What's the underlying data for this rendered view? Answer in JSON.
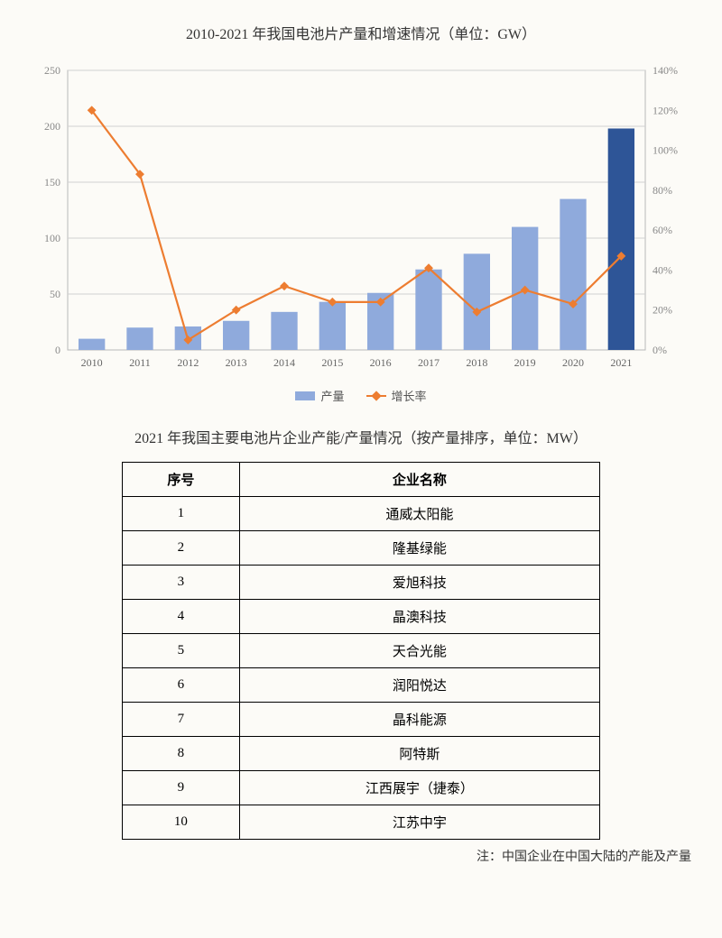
{
  "chart": {
    "title": "2010-2021 年我国电池片产量和增速情况（单位：GW）",
    "type": "bar_line_dual_axis",
    "categories": [
      "2010",
      "2011",
      "2012",
      "2013",
      "2014",
      "2015",
      "2016",
      "2017",
      "2018",
      "2019",
      "2020",
      "2021"
    ],
    "bar_series": {
      "label": "产量",
      "values": [
        10,
        20,
        21,
        26,
        34,
        43,
        51,
        72,
        86,
        110,
        135,
        198
      ],
      "colors": [
        "#8faadc",
        "#8faadc",
        "#8faadc",
        "#8faadc",
        "#8faadc",
        "#8faadc",
        "#8faadc",
        "#8faadc",
        "#8faadc",
        "#8faadc",
        "#8faadc",
        "#2e5597"
      ]
    },
    "line_series": {
      "label": "增长率",
      "values": [
        120,
        88,
        5,
        20,
        32,
        24,
        24,
        41,
        19,
        30,
        23,
        47
      ],
      "color": "#ed7d31",
      "stroke_width": 2.2,
      "marker": "diamond",
      "marker_size": 7
    },
    "left_axis": {
      "min": 0,
      "max": 250,
      "step": 50,
      "label_fontsize": 12,
      "color": "#888"
    },
    "right_axis": {
      "min": 0,
      "max": 140,
      "step": 20,
      "suffix": "%",
      "label_fontsize": 12,
      "color": "#888"
    },
    "grid_color": "#d0d0d0",
    "plot_bg": "#fcfbf7",
    "border_color": "#b8b8b8",
    "bar_width_ratio": 0.55,
    "title_fontsize": 16,
    "category_fontsize": 12
  },
  "table": {
    "title": "2021 年我国主要电池片企业产能/产量情况（按产量排序，单位：MW）",
    "columns": [
      "序号",
      "企业名称"
    ],
    "rows": [
      [
        "1",
        "通威太阳能"
      ],
      [
        "2",
        "隆基绿能"
      ],
      [
        "3",
        "爱旭科技"
      ],
      [
        "4",
        "晶澳科技"
      ],
      [
        "5",
        "天合光能"
      ],
      [
        "6",
        "润阳悦达"
      ],
      [
        "7",
        "晶科能源"
      ],
      [
        "8",
        "阿特斯"
      ],
      [
        "9",
        "江西展宇（捷泰）"
      ],
      [
        "10",
        "江苏中宇"
      ]
    ]
  },
  "footnote": "注：中国企业在中国大陆的产能及产量"
}
